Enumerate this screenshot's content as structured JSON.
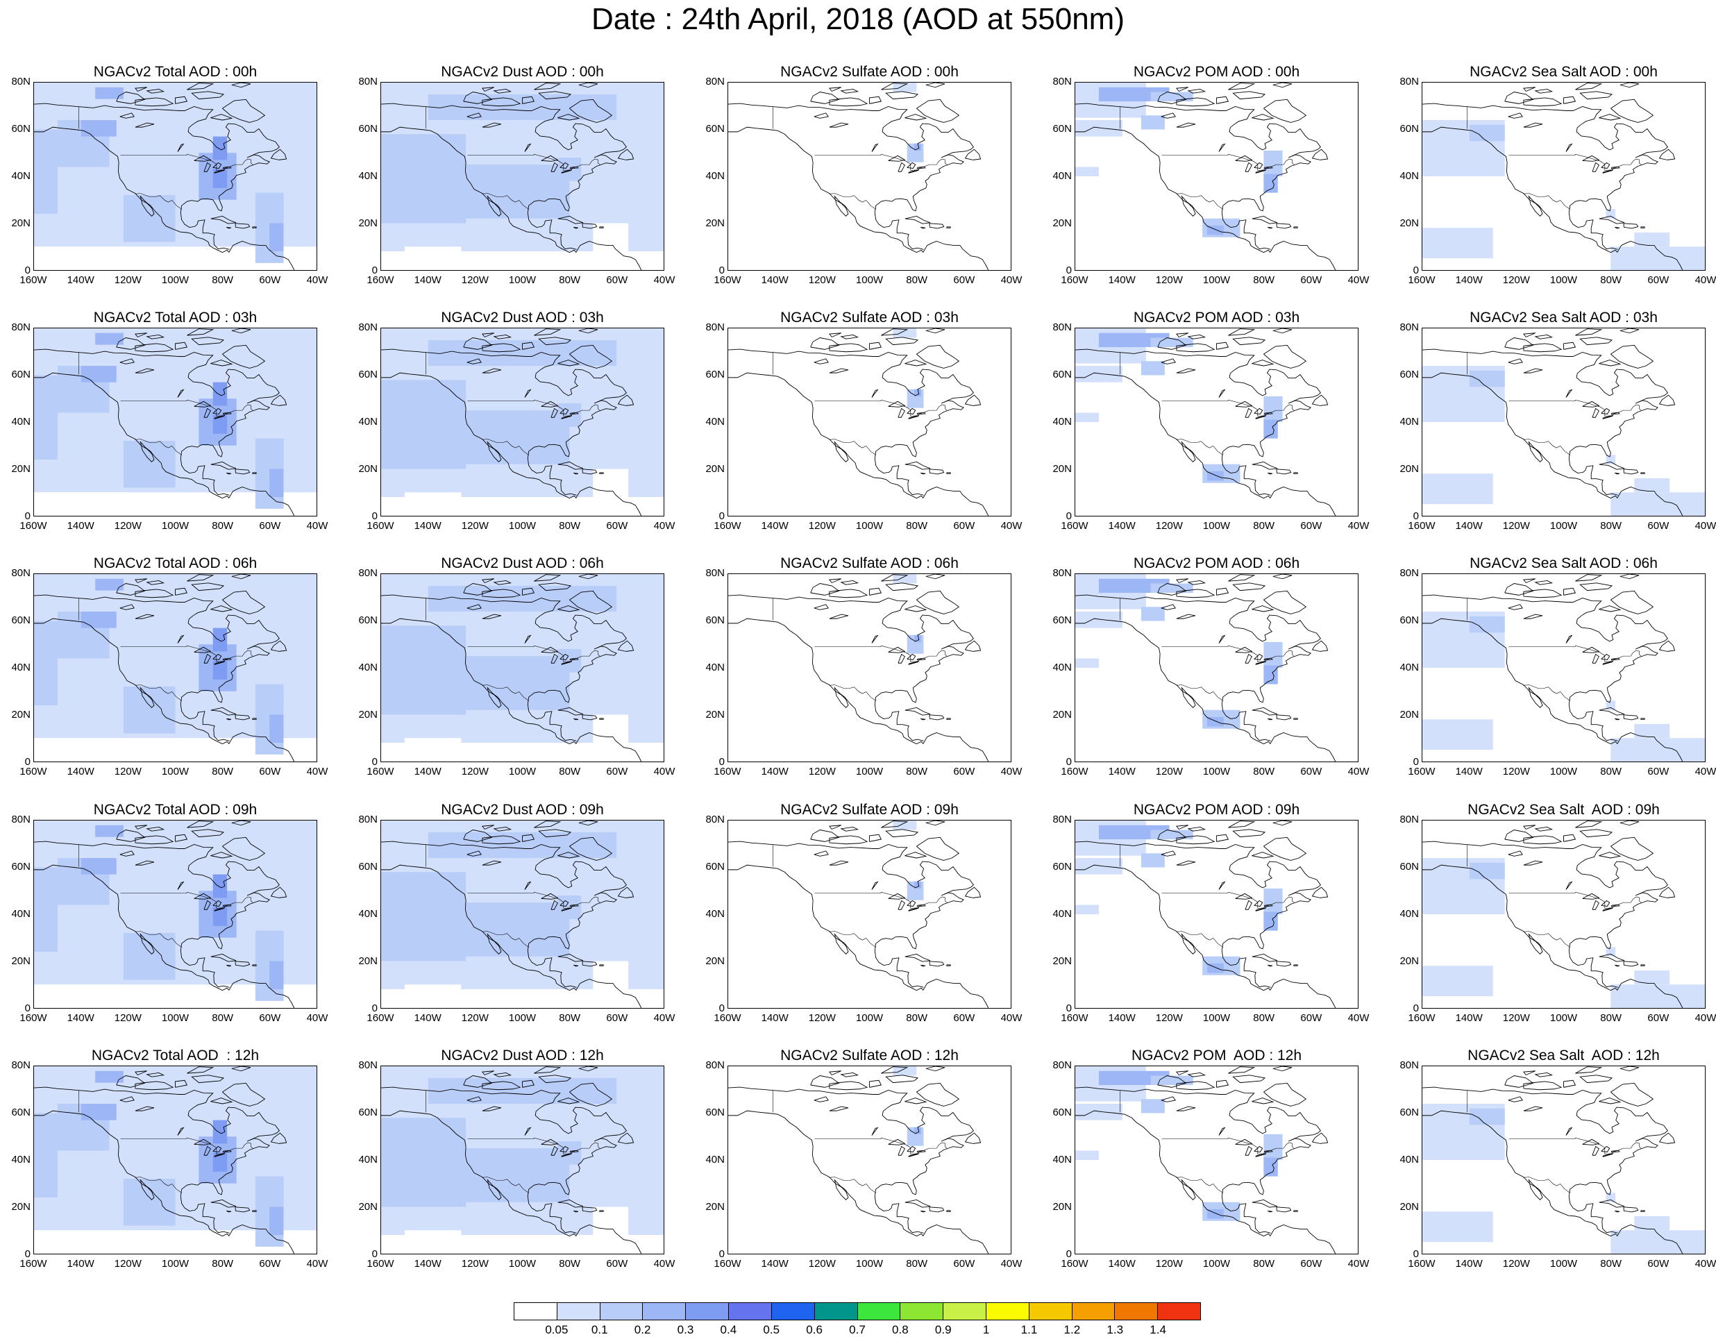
{
  "title": "Date : 24th April, 2018 (AOD at 550nm)",
  "lat_ticks": [
    "80N",
    "60N",
    "40N",
    "20N",
    "0"
  ],
  "lon_ticks": [
    "160W",
    "140W",
    "120W",
    "100W",
    "80W",
    "60W",
    "40W"
  ],
  "panels": [
    [
      "NGACv2 Total AOD : 00h",
      "NGACv2 Dust AOD : 00h",
      "NGACv2 Sulfate AOD : 00h",
      "NGACv2 POM AOD : 00h",
      "NGACv2 Sea Salt AOD : 00h"
    ],
    [
      "NGACv2 Total AOD : 03h",
      "NGACv2 Dust AOD : 03h",
      "NGACv2 Sulfate AOD : 03h",
      "NGACv2 POM AOD : 03h",
      "NGACv2 Sea Salt AOD : 03h"
    ],
    [
      "NGACv2 Total AOD : 06h",
      "NGACv2 Dust AOD : 06h",
      "NGACv2 Sulfate AOD : 06h",
      "NGACv2 POM AOD : 06h",
      "NGACv2 Sea Salt AOD : 06h"
    ],
    [
      "NGACv2 Total AOD : 09h",
      "NGACv2 Dust AOD : 09h",
      "NGACv2 Sulfate AOD : 09h",
      "NGACv2 POM AOD : 09h",
      "NGACv2 Sea Salt  AOD : 09h"
    ],
    [
      "NGACv2 Total AOD  : 12h",
      "NGACv2 Dust AOD : 12h",
      "NGACv2 Sulfate AOD : 12h",
      "NGACv2 POM  AOD : 12h",
      "NGACv2 Sea Salt  AOD : 12h"
    ]
  ],
  "colorbar": {
    "labels": [
      "0.05",
      "0.1",
      "0.2",
      "0.3",
      "0.4",
      "0.5",
      "0.6",
      "0.7",
      "0.8",
      "0.9",
      "1",
      "1.1",
      "1.2",
      "1.3",
      "1.4"
    ],
    "colors": [
      "#ffffff",
      "#d3e0fb",
      "#b9cdf9",
      "#9cb6f6",
      "#7f9cf3",
      "#6673ee",
      "#1e64f0",
      "#00968c",
      "#3ce63c",
      "#8ce632",
      "#c8f046",
      "#fafa00",
      "#f5c800",
      "#f5a000",
      "#f07800",
      "#f03210"
    ]
  }
}
